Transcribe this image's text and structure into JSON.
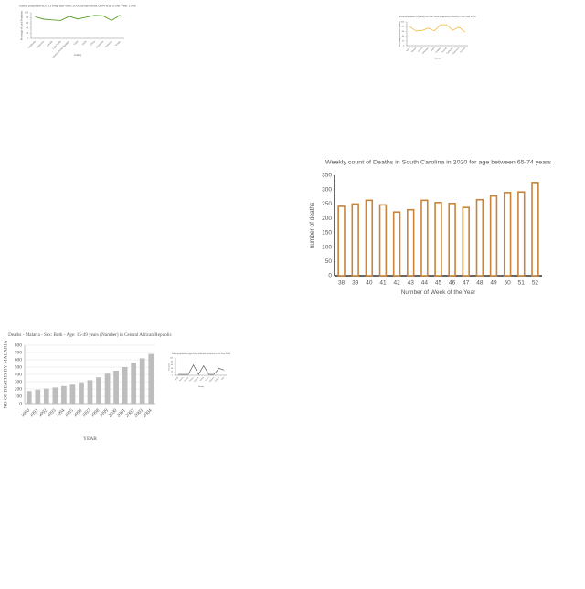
{
  "chart_data": [
    {
      "type": "line",
      "title": "Rural population (%) long run with 2050 projections (OWID) in the Year 1960",
      "x_label": "Country",
      "y_label": "Percentage of Rural Population",
      "categories": [
        "Cambodia",
        "Cameroon",
        "Canada",
        "Cape Verde",
        "Central African Republic",
        "Chad",
        "Chile",
        "China",
        "Colombia",
        "Comoros",
        "Congo"
      ],
      "values": [
        84,
        75,
        72,
        70,
        86,
        76,
        83,
        90,
        88,
        70,
        91
      ],
      "color": "#5aa02c",
      "ylim": [
        0,
        100
      ],
      "yticks": [
        0,
        20,
        40,
        60,
        80,
        100
      ],
      "grid": false
    },
    {
      "type": "line",
      "title": "Rural population (%) long run with 2050 projections (OWID) in the Year 1970",
      "x_label": "Country",
      "y_label": "Percentage of Rural Population",
      "categories": [
        "Benin",
        "Bhutan",
        "Bolivia",
        "Botswana",
        "Brazil",
        "Bulgaria",
        "Burundi",
        "Cambodia",
        "Cameroon",
        "Canada"
      ],
      "values": [
        80,
        62,
        64,
        74,
        62,
        88,
        88,
        65,
        78,
        58
      ],
      "color": "#f0b429",
      "ylim": [
        0,
        100
      ],
      "yticks": [
        0,
        20,
        40,
        60,
        80,
        100
      ],
      "grid": false
    },
    {
      "type": "bar",
      "title": "Weekly count of Deaths in South Carolina in 2020 for age between 65-74 years",
      "x_label": "Number of Week of the Year",
      "y_label": "number of deaths",
      "categories": [
        "38",
        "39",
        "40",
        "41",
        "42",
        "43",
        "44",
        "45",
        "46",
        "47",
        "48",
        "49",
        "50",
        "51",
        "52"
      ],
      "values": [
        242,
        250,
        263,
        247,
        222,
        230,
        263,
        255,
        252,
        238,
        265,
        278,
        290,
        292,
        325
      ],
      "color": "#c8843a",
      "outline": true,
      "ylim": [
        0,
        350
      ],
      "yticks": [
        0,
        50,
        100,
        150,
        200,
        250,
        300,
        350
      ],
      "grid": false
    },
    {
      "type": "bar",
      "title": "Deaths - Malaria - Sex: Both - Age: 15-49 years (Number) in Central African Republic",
      "x_label": "YEAR",
      "y_label": "NO OF DEATHS BY MALARIA",
      "categories": [
        "1990",
        "1991",
        "1992",
        "1993",
        "1994",
        "1995",
        "1996",
        "1997",
        "1998",
        "1999",
        "2000",
        "2001",
        "2002",
        "2003",
        "2004"
      ],
      "values": [
        172,
        190,
        205,
        220,
        240,
        260,
        290,
        320,
        360,
        410,
        450,
        500,
        560,
        620,
        680
      ],
      "color": "#bdbdbd",
      "outline": false,
      "ylim": [
        0,
        800
      ],
      "yticks": [
        0,
        100,
        200,
        300,
        400,
        500,
        600,
        700,
        800
      ],
      "grid": true
    },
    {
      "type": "line",
      "title": "Infant population (age 0) by selected countries in the Year 2006",
      "x_label": "Country",
      "y_label": "Population",
      "categories": [
        "Aruba",
        "Austria",
        "Bahrain",
        "Belarus",
        "Belgium",
        "Bolivia",
        "Brunei",
        "Bulgaria",
        "Canada",
        "Chile"
      ],
      "values": [
        5,
        5,
        5,
        60,
        5,
        55,
        5,
        5,
        40,
        30
      ],
      "color": "#555555",
      "ylim": [
        0,
        100
      ],
      "yticks": [
        0,
        20,
        40,
        60,
        80,
        100
      ],
      "grid": false
    }
  ]
}
